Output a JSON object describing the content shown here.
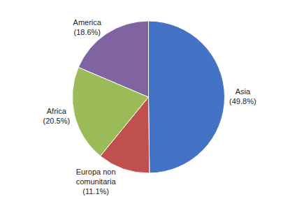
{
  "chart_data": {
    "type": "pie",
    "values": [
      49.8,
      11.1,
      20.5,
      18.6
    ],
    "colors": [
      "#4472C4",
      "#C0504D",
      "#9BBB59",
      "#8064A2"
    ],
    "data_labels": true,
    "value_labels": [
      "Asia\n(49.8%)",
      "Europa non\ncomunitaria\n(11.1%)",
      "Africa\n(20.5%)",
      "America\n(18.6%)"
    ],
    "legend": false
  }
}
